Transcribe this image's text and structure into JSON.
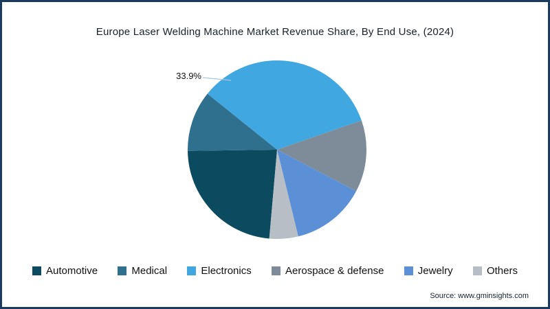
{
  "title": "Europe Laser Welding Machine Market Revenue Share, By End Use, (2024)",
  "source": "Source: www.gminsights.com",
  "annotation": {
    "electronics_share": "33.9%"
  },
  "colors": {
    "border": "#1b3a5f",
    "title_text": "#17202b",
    "leader_line": "#a8c6e0"
  },
  "chart_data": {
    "type": "pie",
    "title": "Europe Laser Welding Machine Market Revenue Share, By End Use, (2024)",
    "labels": [
      "Automotive",
      "Medical",
      "Electronics",
      "Aerospace & defense",
      "Jewelry",
      "Others"
    ],
    "values": [
      23.4,
      11.0,
      33.9,
      13.0,
      13.5,
      5.2
    ],
    "colors": [
      "#0b4a5f",
      "#30708f",
      "#41a7e0",
      "#7e8c99",
      "#5b8fd6",
      "#b7bec6"
    ],
    "start_angle_deg": 185,
    "clockwise": true,
    "legend_position": "bottom",
    "data_labels_visible": [
      "Electronics"
    ],
    "annotations": [
      {
        "text": "33.9%",
        "slice": "Electronics"
      }
    ]
  },
  "legend": {
    "items": [
      {
        "label": "Automotive",
        "color": "#0b4a5f"
      },
      {
        "label": "Medical",
        "color": "#30708f"
      },
      {
        "label": "Electronics",
        "color": "#41a7e0"
      },
      {
        "label": "Aerospace & defense",
        "color": "#7e8c99"
      },
      {
        "label": "Jewelry",
        "color": "#5b8fd6"
      },
      {
        "label": "Others",
        "color": "#b7bec6"
      }
    ]
  }
}
